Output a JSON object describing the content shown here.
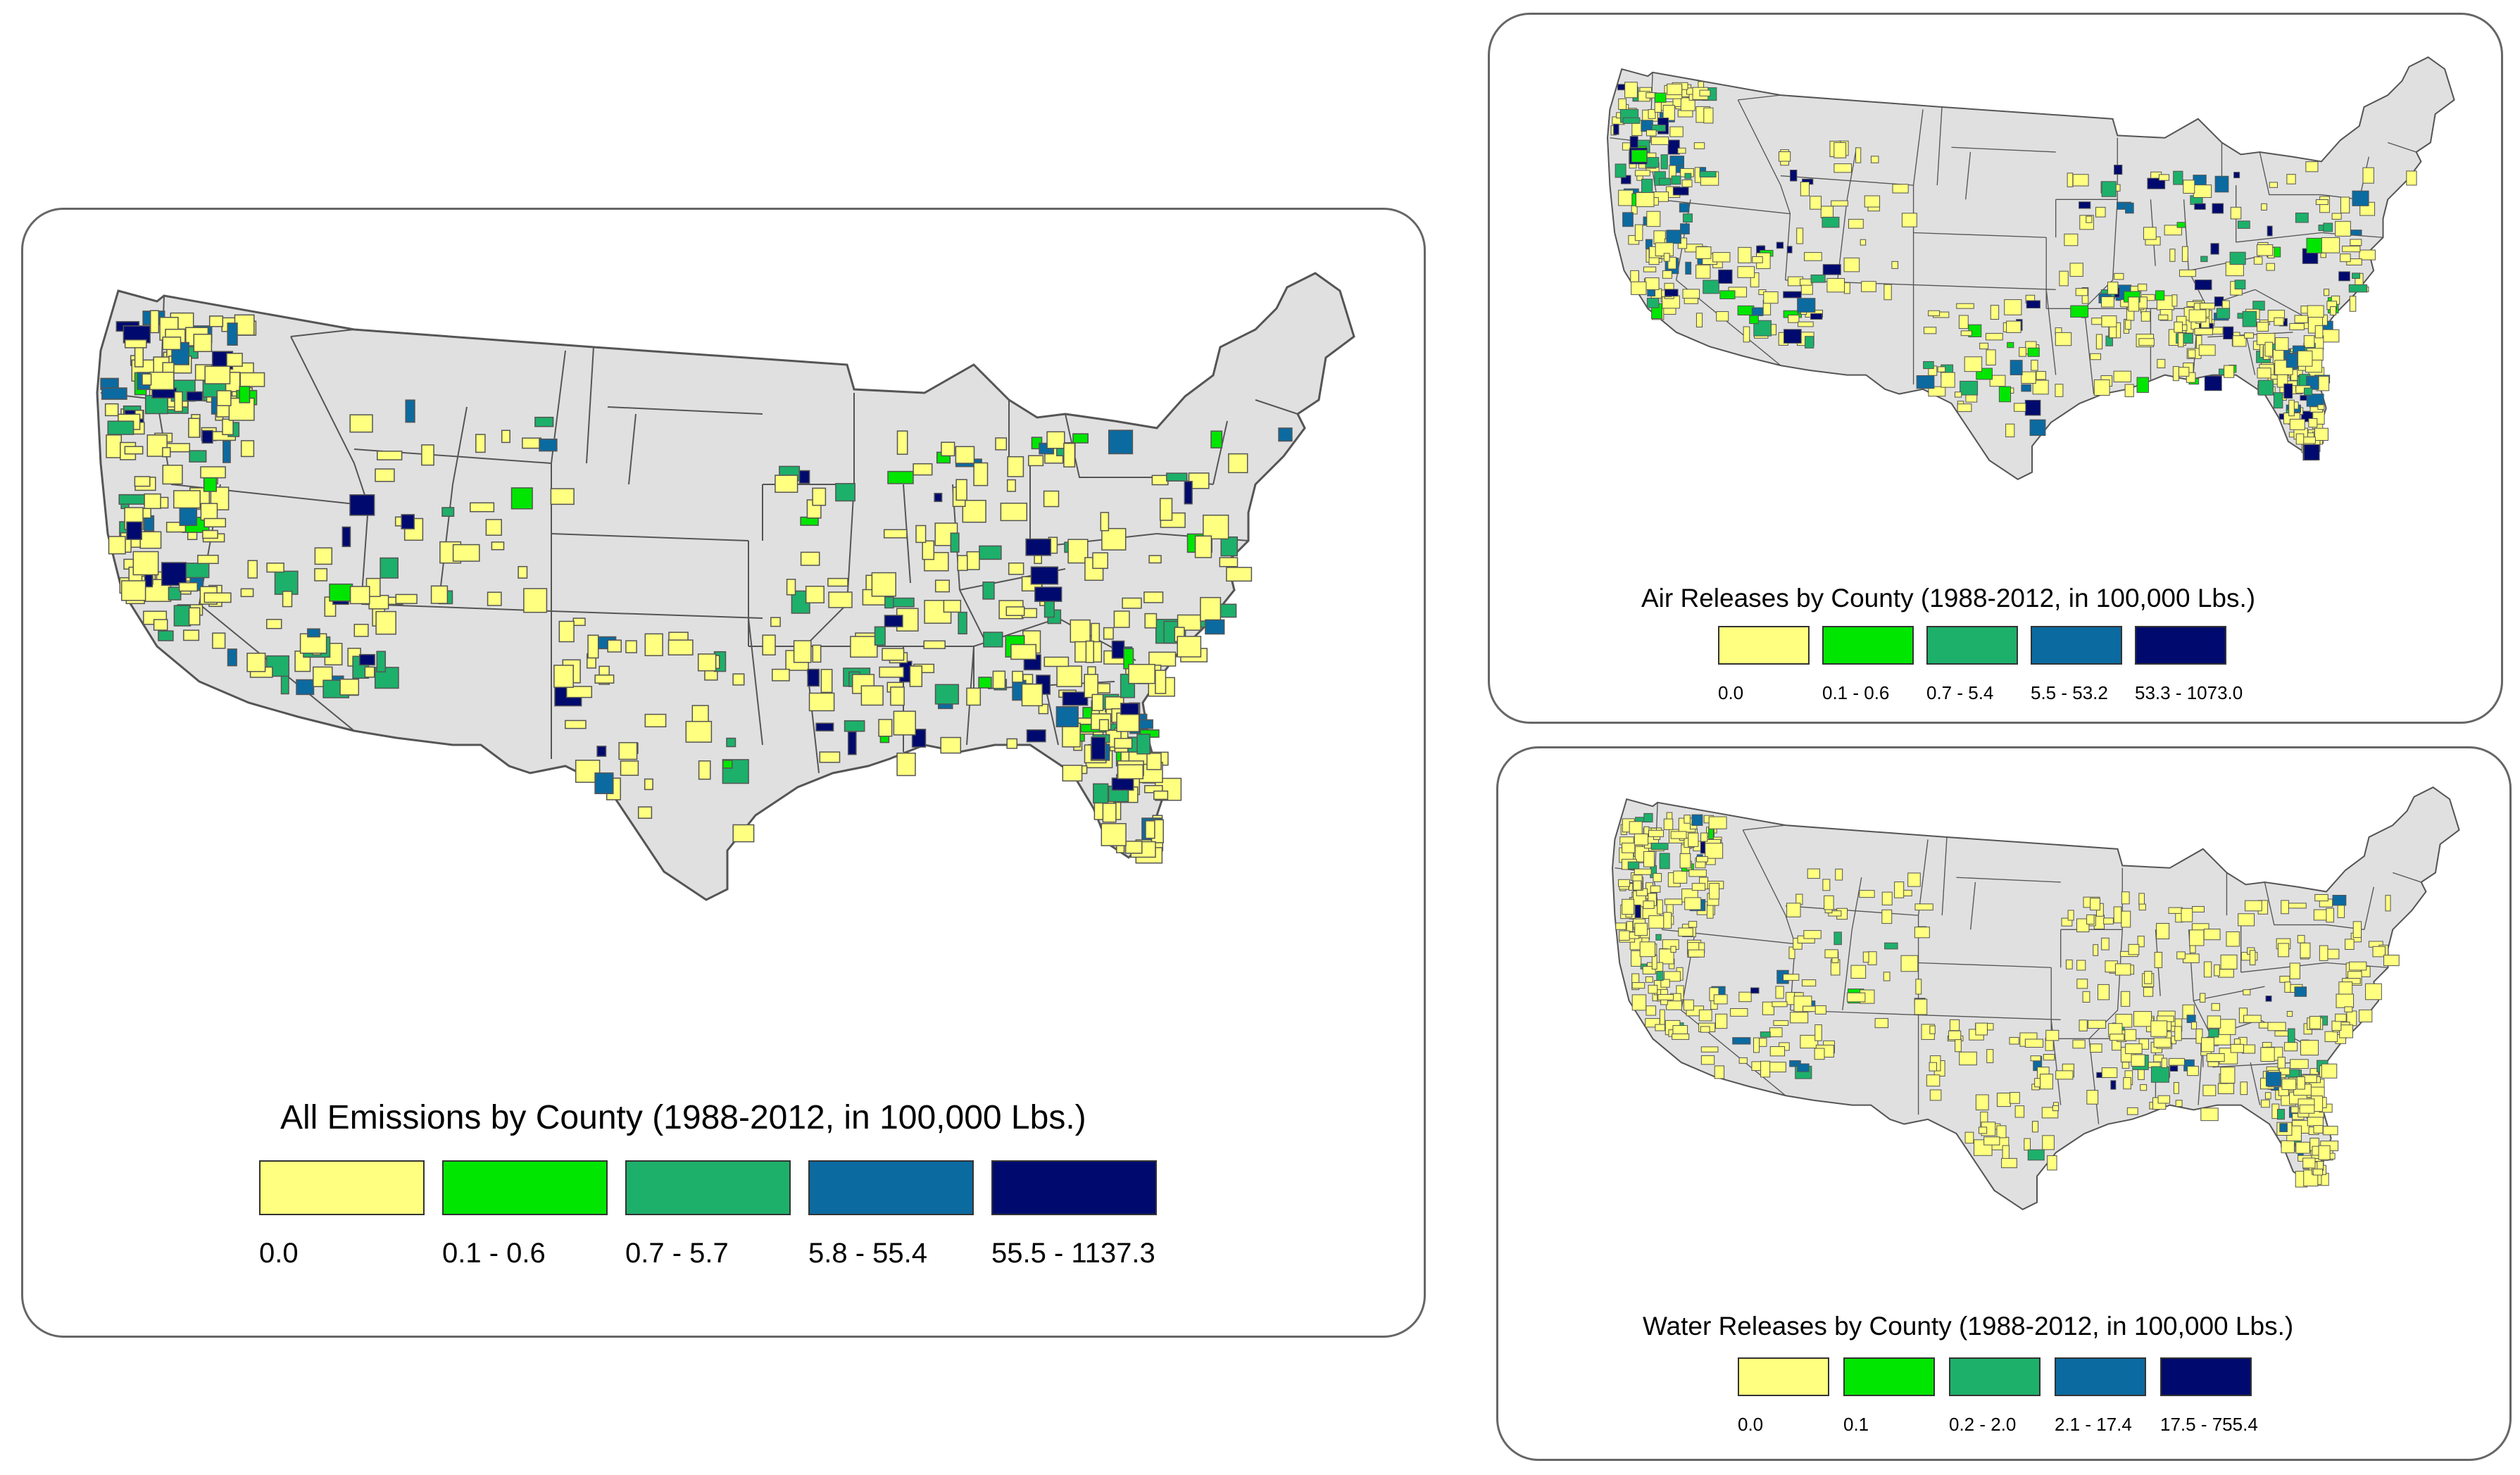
{
  "colors": {
    "land": "#e0e0e0",
    "border": "#555555",
    "classes": [
      "#ffff80",
      "#00e600",
      "#1db06a",
      "#0b6aa0",
      "#000a6e"
    ]
  },
  "maps": {
    "all": {
      "title": "All Emissions by County (1988-2012, in 100,000 Lbs.)",
      "legend": [
        "0.0",
        "0.1 - 0.6",
        "0.7 - 5.7",
        "5.8 - 55.4",
        "55.5 - 1137.3"
      ]
    },
    "air": {
      "title": "Air Releases by County (1988-2012, in 100,000 Lbs.)",
      "legend": [
        "0.0",
        "0.1 - 0.6",
        "0.7 - 5.4",
        "5.5 - 53.2",
        "53.3 - 1073.0"
      ]
    },
    "water": {
      "title": "Water Releases by County (1988-2012, in 100,000 Lbs.)",
      "legend": [
        "0.0",
        "0.1",
        "0.2 - 2.0",
        "2.1 - 17.4",
        "17.5 - 755.4"
      ]
    }
  }
}
